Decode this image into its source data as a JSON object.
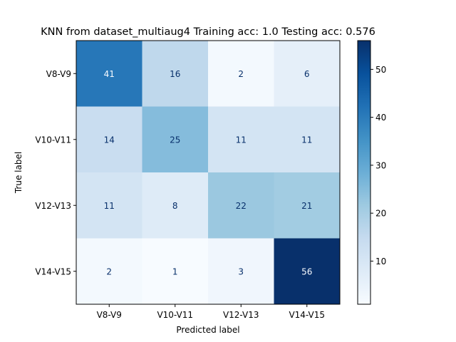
{
  "chart_data": {
    "type": "heatmap",
    "title": "KNN from dataset_multiaug4 Training acc: 1.0 Testing acc: 0.576",
    "xlabel": "Predicted label",
    "ylabel": "True label",
    "x_categories": [
      "V8-V9",
      "V10-V11",
      "V12-V13",
      "V14-V15"
    ],
    "y_categories": [
      "V8-V9",
      "V10-V11",
      "V12-V13",
      "V14-V15"
    ],
    "values": [
      [
        41,
        16,
        2,
        6
      ],
      [
        14,
        25,
        11,
        11
      ],
      [
        11,
        8,
        22,
        21
      ],
      [
        2,
        1,
        3,
        56
      ]
    ],
    "colormap": "Blues",
    "colorbar": {
      "min": 1,
      "max": 56,
      "ticks": [
        10,
        20,
        30,
        40,
        50
      ]
    },
    "grid": false
  }
}
